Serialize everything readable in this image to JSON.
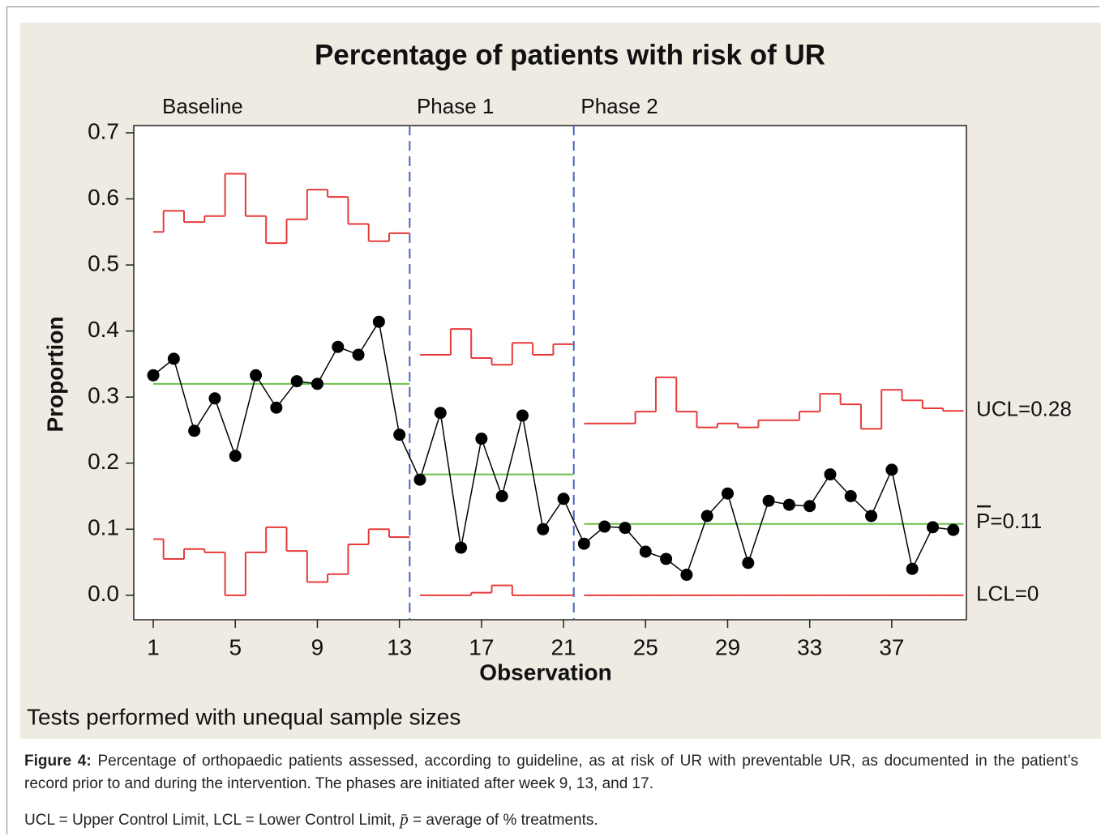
{
  "chart_data": {
    "type": "control",
    "title": "Percentage of patients with risk of UR",
    "xlabel": "Observation",
    "ylabel": "Proportion",
    "note": "Tests performed with unequal sample sizes",
    "x": [
      1,
      2,
      3,
      4,
      5,
      6,
      7,
      8,
      9,
      10,
      11,
      12,
      13,
      14,
      15,
      16,
      17,
      18,
      19,
      20,
      21,
      22,
      23,
      24,
      25,
      26,
      27,
      28,
      29,
      30,
      31,
      32,
      33,
      34,
      35,
      36,
      37,
      38,
      39,
      40
    ],
    "values": [
      0.333,
      0.358,
      0.249,
      0.298,
      0.211,
      0.333,
      0.284,
      0.324,
      0.32,
      0.376,
      0.364,
      0.414,
      0.243,
      0.175,
      0.276,
      0.072,
      0.237,
      0.15,
      0.272,
      0.1,
      0.146,
      0.078,
      0.104,
      0.102,
      0.066,
      0.055,
      0.031,
      0.12,
      0.154,
      0.049,
      0.143,
      0.137,
      0.135,
      0.183,
      0.15,
      0.12,
      0.19,
      0.04,
      0.103,
      0.099
    ],
    "ucl": [
      0.55,
      0.582,
      0.565,
      0.574,
      0.638,
      0.574,
      0.533,
      0.569,
      0.614,
      0.603,
      0.562,
      0.536,
      0.548,
      0.364,
      0.364,
      0.403,
      0.359,
      0.349,
      0.382,
      0.364,
      0.38,
      0.26,
      0.26,
      0.26,
      0.278,
      0.33,
      0.278,
      0.254,
      0.26,
      0.254,
      0.265,
      0.265,
      0.278,
      0.305,
      0.289,
      0.252,
      0.311,
      0.295,
      0.283,
      0.279
    ],
    "lcl": [
      0.085,
      0.055,
      0.07,
      0.065,
      0,
      0.065,
      0.103,
      0.067,
      0.02,
      0.032,
      0.077,
      0.1,
      0.088,
      0,
      0,
      0,
      0.004,
      0.015,
      0,
      0,
      0,
      0,
      0,
      0,
      0,
      0,
      0,
      0,
      0,
      0,
      0,
      0,
      0,
      0,
      0,
      0,
      0,
      0,
      0,
      0
    ],
    "phases": [
      {
        "name": "Baseline",
        "start": 1,
        "end": 13,
        "center": 0.32
      },
      {
        "name": "Phase 1",
        "start": 14,
        "end": 21,
        "center": 0.183
      },
      {
        "name": "Phase 2",
        "start": 22,
        "end": 40,
        "center": 0.108
      }
    ],
    "phase_boundaries": [
      13.5,
      21.5
    ],
    "annotations": [
      {
        "text": "UCL=0.28",
        "y": 0.28
      },
      {
        "text": "P=0.11",
        "y": 0.11
      },
      {
        "text": "LCL=0",
        "y": 0
      }
    ],
    "xlim": [
      0.05,
      40.64
    ],
    "ylim": [
      -0.037,
      0.711
    ],
    "xticks": [
      1,
      5,
      9,
      13,
      17,
      21,
      25,
      29,
      33,
      37
    ],
    "yticks": [
      {
        "value": 0,
        "label": "0.0"
      },
      0.1,
      0.2,
      0.3,
      0.4,
      0.5,
      0.6,
      0.7
    ],
    "point_color": "#000000",
    "limit_color": "#e83a3a",
    "center_color": "#6cc04a",
    "phase_line_color": "#4a64b4"
  },
  "caption": {
    "label": "Figure 4:",
    "text": "Percentage of orthopaedic patients assessed, according to guideline, as at risk of UR with preventable UR, as documented in the patient’s record prior to and during the intervention. The phases are initiated after week 9, 13, and 17.",
    "legend_before": "UCL = Upper Control Limit, LCL = Lower Control Limit,",
    "legend_symbol": "p̄",
    "legend_after": "= average of % treatments."
  }
}
